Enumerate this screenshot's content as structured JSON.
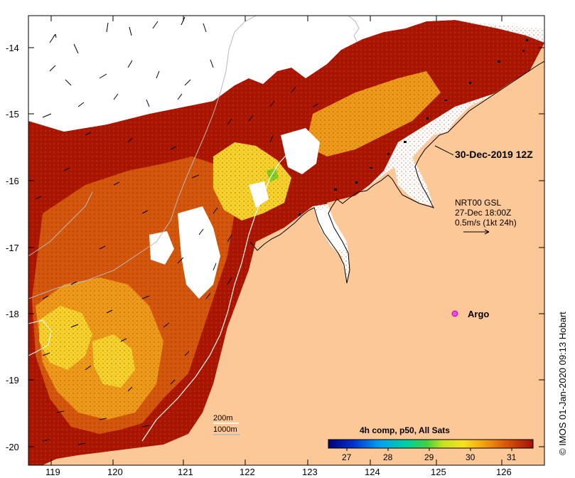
{
  "map": {
    "date_label": "30-Dec-2019 12Z",
    "wind_info": {
      "source": "NRT00 GSL",
      "time": "27-Dec 18:00Z",
      "scale": "0.5m/s (1kt 24h)"
    },
    "argo_label": "Argo",
    "depth_contours": [
      "200m",
      "1000m"
    ],
    "credit": "© IMOS 01-Jan-2020 09:13 Hobart",
    "x_ticks": [
      "119",
      "120",
      "121",
      "122",
      "123",
      "124",
      "125",
      "126"
    ],
    "y_ticks": [
      "-14",
      "-15",
      "-16",
      "-17",
      "-18",
      "-19",
      "-20"
    ],
    "colorbar": {
      "title": "4h comp, p50, All Sats",
      "ticks": [
        "27",
        "28",
        "29",
        "30",
        "31"
      ]
    },
    "colors": {
      "land": "#fcc897",
      "sst_dark": "#a91500",
      "sst_mid": "#d2560b",
      "sst_warm": "#ec9a1a",
      "sst_yellow": "#f4d42c",
      "argo": "#e010e0"
    }
  }
}
